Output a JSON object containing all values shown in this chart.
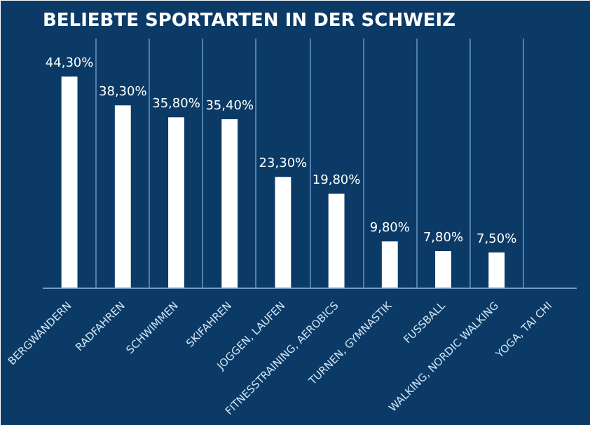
{
  "chart_data": {
    "type": "bar",
    "title": "BELIEBTE SPORTARTEN IN DER SCHWEIZ",
    "categories": [
      "BERGWANDERN",
      "RADFAHREN",
      "SCHWIMMEN",
      "SKIFAHREN",
      "JOGGEN, LAUFEN",
      "FITNESSTRAINING, AEROBICS",
      "TURNEN, GYMNASTIK",
      "FUSSBALL",
      "WALKING, NORDIC WALKING",
      "YOGA, TAI CHI"
    ],
    "values": [
      44.3,
      38.3,
      35.8,
      35.4,
      23.3,
      19.8,
      9.8,
      7.8,
      7.5,
      null
    ],
    "value_labels": [
      "44,30%",
      "38,30%",
      "35,80%",
      "35,40%",
      "23,30%",
      "19,80%",
      "9,80%",
      "7,80%",
      "7,50%",
      null
    ],
    "color": "#ffffff",
    "grid": "x",
    "tick_labels": "x"
  }
}
